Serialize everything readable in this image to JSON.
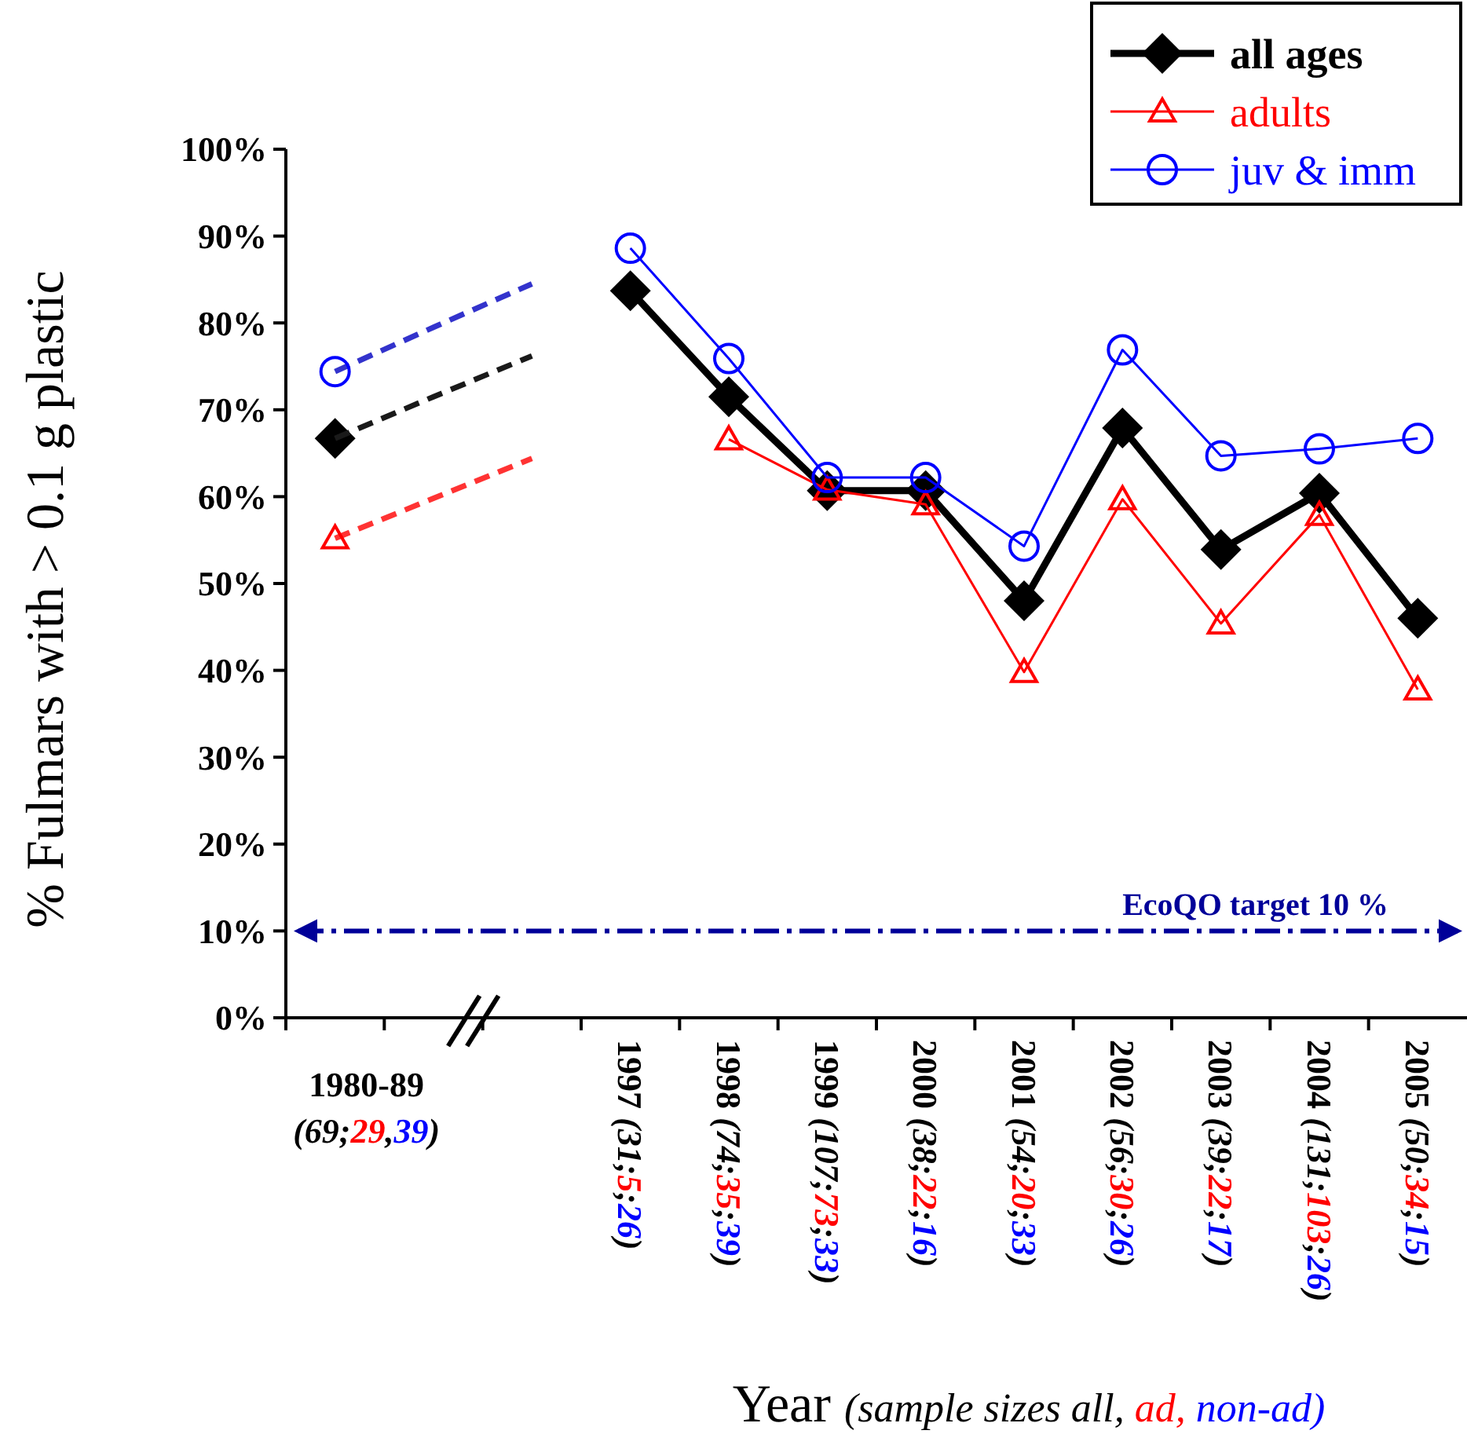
{
  "chart_data": {
    "type": "line",
    "xlabel": "Year (sample sizes all, ad, non-ad)",
    "ylabel": "% Fulmars with > 0.1 g plastic",
    "categories": [
      "1980-89 (69;29,39)",
      null,
      null,
      "1997 (31;5;26)",
      "1998 (74;35;39)",
      "1999 (107;73;33)",
      "2000 (38;22;16)",
      "2001 (54;20;33)",
      "2002 (56;30;26)",
      "2003 (39;22;17)",
      "2004 (131;103;26)",
      "2005 (50;34;15)"
    ],
    "series": [
      {
        "name": "all ages",
        "color": "#000000",
        "marker": "diamond",
        "values": [
          66.7,
          null,
          null,
          83.7,
          71.5,
          60.7,
          60.7,
          48.0,
          67.9,
          53.9,
          60.4,
          46.0
        ]
      },
      {
        "name": "adults",
        "color": "#ff0000",
        "marker": "triangle",
        "values": [
          55.2,
          null,
          null,
          null,
          66.6,
          60.8,
          59.1,
          39.8,
          59.7,
          45.4,
          57.9,
          37.8
        ]
      },
      {
        "name": "juv & imm",
        "color": "#0000ff",
        "marker": "circle",
        "values": [
          74.4,
          null,
          null,
          88.6,
          75.9,
          62.2,
          62.2,
          54.3,
          76.9,
          64.7,
          65.5,
          66.7
        ]
      },
      {
        "color": "#1a1a1a",
        "marker": "none",
        "line_style": "dashed",
        "values": [
          66.7,
          71.5,
          76.2,
          null,
          null,
          null,
          null,
          null,
          null,
          null,
          null,
          null
        ]
      },
      {
        "color": "#ff3333",
        "marker": "none",
        "line_style": "dashed",
        "values": [
          55.2,
          59.8,
          64.4,
          null,
          null,
          null,
          null,
          null,
          null,
          null,
          null,
          null
        ]
      },
      {
        "color": "#3333cc",
        "marker": "none",
        "line_style": "dashed",
        "values": [
          74.4,
          79.5,
          84.5,
          null,
          null,
          null,
          null,
          null,
          null,
          null,
          null,
          null
        ]
      }
    ],
    "ylim": [
      0,
      100
    ],
    "yticks": [
      {
        "value": 0,
        "label": "0%"
      },
      {
        "value": 10,
        "label": "10%"
      },
      {
        "value": 20,
        "label": "20%"
      },
      {
        "value": 30,
        "label": "30%"
      },
      {
        "value": 40,
        "label": "40%"
      },
      {
        "value": 50,
        "label": "50%"
      },
      {
        "value": 60,
        "label": "60%"
      },
      {
        "value": 70,
        "label": "70%"
      },
      {
        "value": 80,
        "label": "80%"
      },
      {
        "value": 90,
        "label": "90%"
      },
      {
        "value": 100,
        "label": "100%"
      }
    ],
    "ref_lines": [
      {
        "axis": "y",
        "value": 10,
        "label": "EcoQO target 10 %",
        "color": "#000099"
      }
    ],
    "grid": false,
    "legend": "top right"
  }
}
